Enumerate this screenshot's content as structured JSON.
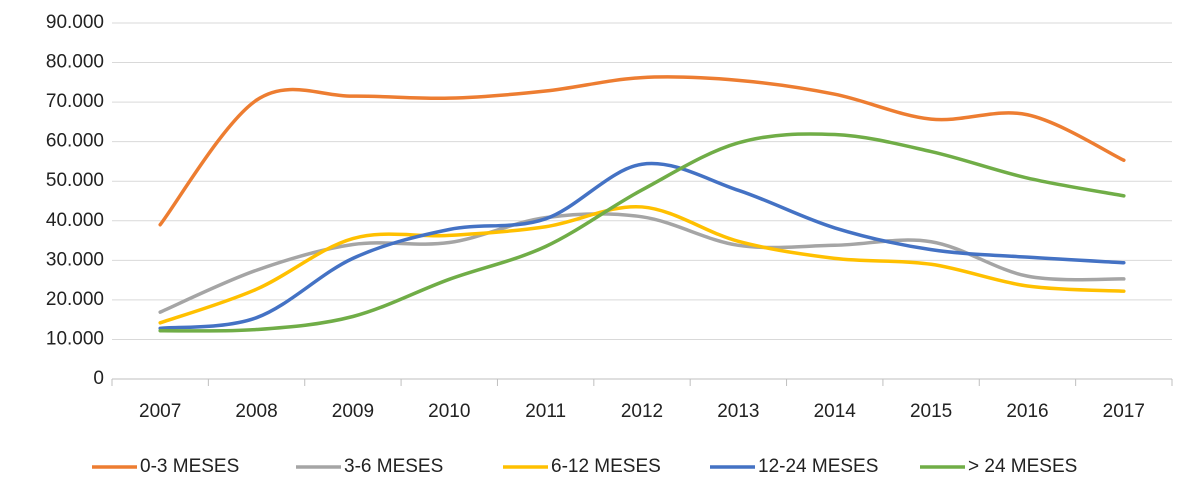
{
  "chart_data": {
    "type": "line",
    "categories": [
      "2007",
      "2008",
      "2009",
      "2010",
      "2011",
      "2012",
      "2013",
      "2014",
      "2015",
      "2016",
      "2017"
    ],
    "series": [
      {
        "name": "0-3 MESES",
        "color": "#ed7d31",
        "values": [
          39000,
          70500,
          71500,
          71000,
          72800,
          76200,
          75500,
          72000,
          65700,
          66800,
          55300
        ]
      },
      {
        "name": "3-6 MESES",
        "color": "#a5a5a5",
        "values": [
          16900,
          27500,
          34000,
          34500,
          40800,
          41000,
          33800,
          33800,
          34700,
          26000,
          25300
        ]
      },
      {
        "name": "6-12 MESES",
        "color": "#ffc000",
        "values": [
          14200,
          22700,
          35500,
          36300,
          38500,
          43500,
          34800,
          30500,
          29000,
          23500,
          22200
        ]
      },
      {
        "name": "12-24 MESES",
        "color": "#4472c4",
        "values": [
          12800,
          15500,
          30500,
          37800,
          40500,
          54300,
          47700,
          38200,
          32700,
          30800,
          29400
        ]
      },
      {
        "name": "> 24 MESES",
        "color": "#70ad47",
        "values": [
          12200,
          12500,
          15800,
          25200,
          33500,
          47800,
          59700,
          61800,
          57500,
          50800,
          46300
        ]
      }
    ],
    "ylim": [
      0,
      90000
    ],
    "yticks": [
      0,
      {
        "value": 10000,
        "label": "10.000"
      },
      {
        "value": 20000,
        "label": "20.000"
      },
      {
        "value": 30000,
        "label": "30.000"
      },
      {
        "value": 40000,
        "label": "40.000"
      },
      {
        "value": 50000,
        "label": "50.000"
      },
      {
        "value": 60000,
        "label": "60.000"
      },
      {
        "value": 70000,
        "label": "70.000"
      },
      {
        "value": 80000,
        "label": "80.000"
      },
      {
        "value": 90000,
        "label": "90.000"
      }
    ],
    "grid": true,
    "legend": "bottom",
    "smooth": true
  }
}
